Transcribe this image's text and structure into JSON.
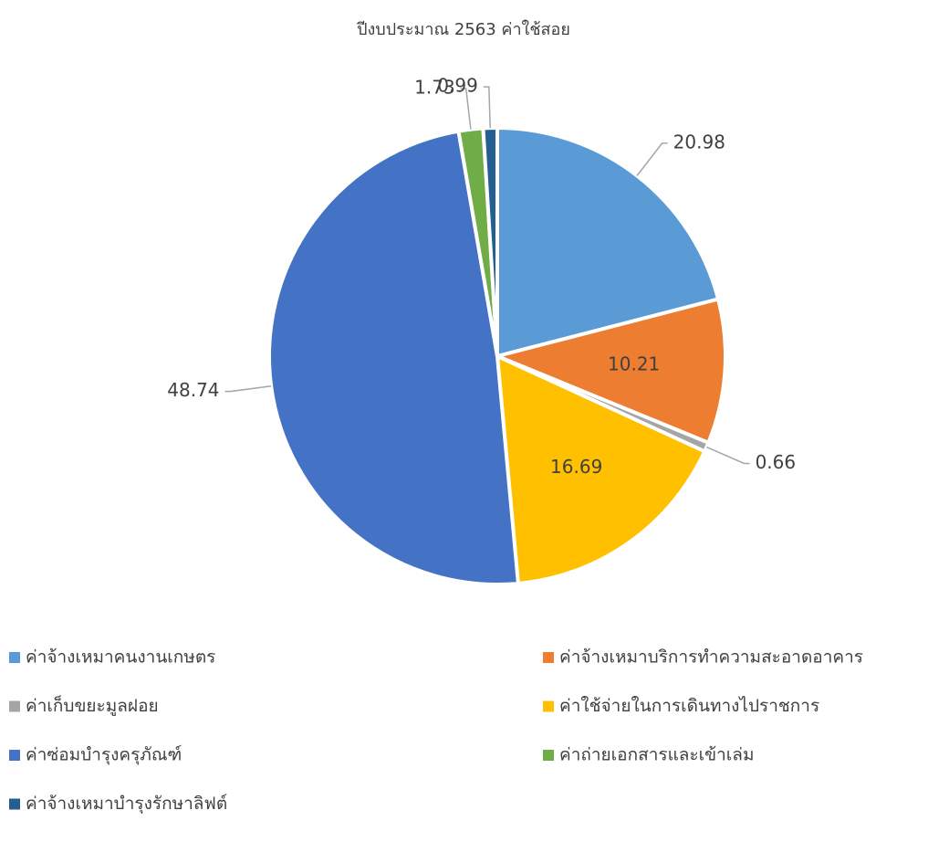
{
  "chart_data": {
    "type": "pie",
    "title": "ปีงบประมาณ 2563 ค่าใช้สอย",
    "categories": [
      "ค่าจ้างเหมาคนงานเกษตร",
      "ค่าจ้างเหมาบริการทำความสะอาดอาคาร",
      "ค่าเก็บขยะมูลฝอย",
      "ค่าใช้จ่ายในการเดินทางไปราชการ",
      "ค่าซ่อมบำรุงครุภัณฑ์",
      "ค่าถ่ายเอกสารและเข้าเล่ม",
      "ค่าจ้างเหมาบำรุงรักษาลิฟต์"
    ],
    "values": [
      20.98,
      10.21,
      0.66,
      16.69,
      48.74,
      1.73,
      0.99
    ],
    "colors": [
      "#5b9bd5",
      "#ed7d31",
      "#a5a5a5",
      "#ffc000",
      "#4472c4",
      "#70ad47",
      "#255e91"
    ],
    "legend": "bottom"
  }
}
